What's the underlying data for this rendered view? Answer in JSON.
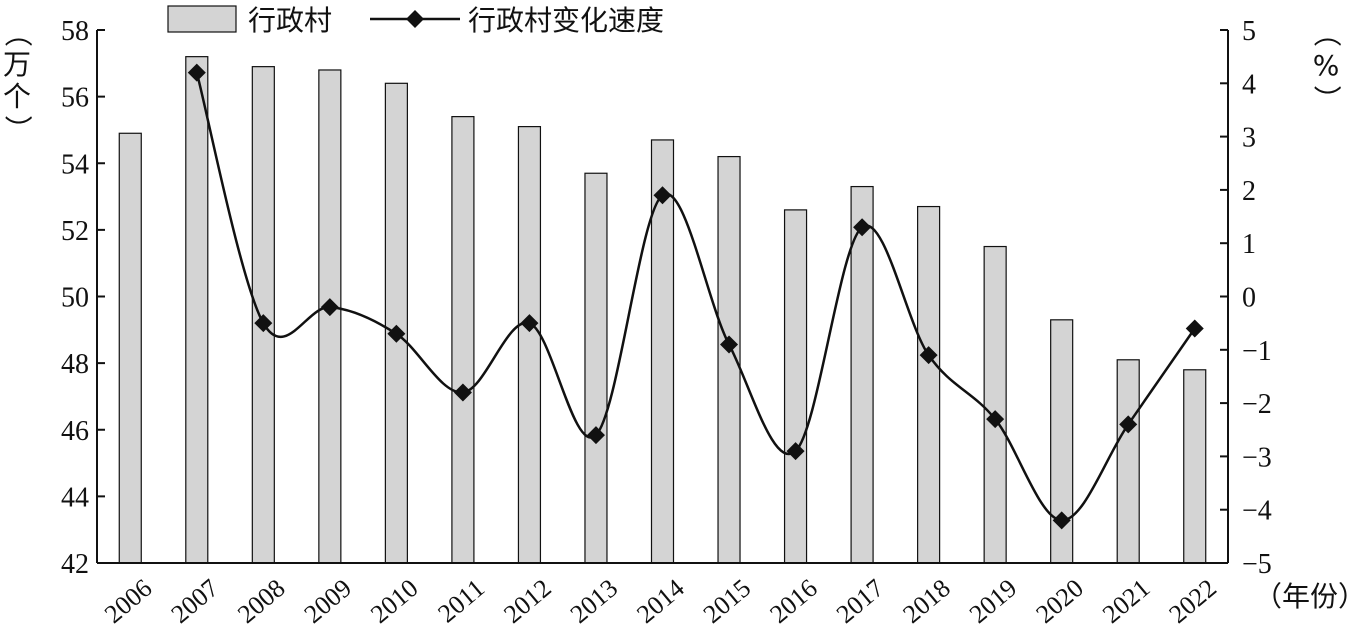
{
  "chart_data": {
    "type": "bar+line",
    "categories": [
      "2006",
      "2007",
      "2008",
      "2009",
      "2010",
      "2011",
      "2012",
      "2013",
      "2014",
      "2015",
      "2016",
      "2017",
      "2018",
      "2019",
      "2020",
      "2021",
      "2022"
    ],
    "series": [
      {
        "name": "行政村",
        "type": "bar",
        "axis": "left",
        "color": "#d4d4d4",
        "values": [
          54.9,
          57.2,
          56.9,
          56.8,
          56.4,
          55.4,
          55.1,
          53.7,
          54.7,
          54.2,
          52.6,
          53.3,
          52.7,
          51.5,
          49.3,
          48.1,
          47.8
        ]
      },
      {
        "name": "行政村变化速度",
        "type": "line",
        "axis": "right",
        "color": "#111111",
        "marker": "diamond",
        "values": [
          null,
          4.2,
          -0.5,
          -0.2,
          -0.7,
          -1.8,
          -0.5,
          -2.6,
          1.9,
          -0.9,
          -2.9,
          1.3,
          -1.1,
          -2.3,
          -4.2,
          -2.4,
          -0.6
        ]
      }
    ],
    "y_left": {
      "label": "（万个）",
      "range": [
        42,
        58
      ],
      "ticks": [
        "42",
        "44",
        "46",
        "48",
        "50",
        "52",
        "54",
        "56",
        "58"
      ]
    },
    "y_right": {
      "label": "（%）",
      "range": [
        -5,
        5
      ],
      "ticks": [
        "−5",
        "−4",
        "−3",
        "−2",
        "−1",
        "0",
        "1",
        "2",
        "3",
        "4",
        "5"
      ]
    },
    "x_axis": {
      "label": "（年份）"
    },
    "legend": {
      "position": "top"
    },
    "grid": false
  }
}
